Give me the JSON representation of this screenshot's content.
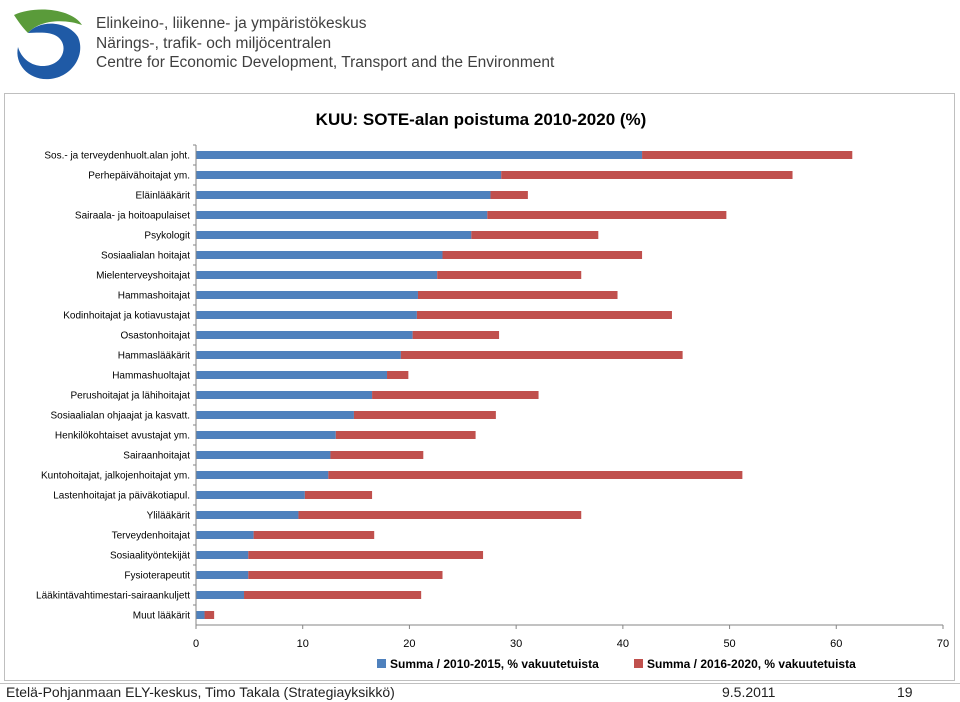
{
  "header": {
    "org_fi": "Elinkeino-, liikenne- ja ympäristökeskus",
    "org_sv": "Närings-, trafik- och miljöcentralen",
    "org_en": "Centre for Economic Development, Transport and the Environment",
    "logo_colors": {
      "green": "#5a9b3a",
      "blue": "#1f5aa6"
    }
  },
  "chart_data": {
    "type": "bar",
    "orientation": "horizontal",
    "stacked": true,
    "title": "KUU: SOTE-alan poistuma 2010-2020 (%)",
    "xlabel": "",
    "ylabel": "",
    "xlim": [
      0,
      70
    ],
    "xticks": [
      0,
      10,
      20,
      30,
      40,
      50,
      60,
      70
    ],
    "grid": false,
    "legend_position": "bottom",
    "categories": [
      "Sos.- ja terveydenhuolt.alan joht.",
      "Perhepäivähoitajat ym.",
      "Eläinlääkärit",
      "Sairaala- ja hoitoapulaiset",
      "Psykologit",
      "Sosiaalialan hoitajat",
      "Mielenterveyshoitajat",
      "Hammashoitajat",
      "Kodinhoitajat ja kotiavustajat",
      "Osastonhoitajat",
      "Hammaslääkärit",
      "Hammashuoltajat",
      "Perushoitajat ja lähihoitajat",
      "Sosiaalialan ohjaajat ja kasvatt.",
      "Henkilökohtaiset avustajat ym.",
      "Sairaanhoitajat",
      "Kuntohoitajat, jalkojenhoitajat ym.",
      "Lastenhoitajat ja päiväkotiapul.",
      "Ylilääkärit",
      "Terveydenhoitajat",
      "Sosiaalityöntekijät",
      "Fysioterapeutit",
      "Lääkintävahtimestari-sairaankuljett",
      "Muut lääkärit"
    ],
    "series": [
      {
        "name": "Summa / 2010-2015, % vakuutetuista",
        "color": "#4f81bd",
        "values": [
          41.8,
          28.6,
          27.6,
          27.3,
          25.8,
          23.1,
          22.6,
          20.8,
          20.7,
          20.3,
          19.2,
          17.9,
          16.5,
          14.8,
          13.1,
          12.6,
          12.4,
          10.2,
          9.6,
          5.4,
          4.9,
          4.9,
          4.5,
          0.8
        ]
      },
      {
        "name": "Summa / 2016-2020, % vakuutetuista",
        "color": "#c0504d",
        "values": [
          19.7,
          27.3,
          3.5,
          22.4,
          11.9,
          18.7,
          13.5,
          18.7,
          23.9,
          8.1,
          26.4,
          2.0,
          15.6,
          13.3,
          13.1,
          8.7,
          38.8,
          6.3,
          26.5,
          11.3,
          22.0,
          18.2,
          16.6,
          0.9
        ]
      }
    ]
  },
  "footer": {
    "source": "Etelä-Pohjanmaan ELY-keskus, Timo Takala (Strategiayksikkö)",
    "date": "9.5.2011",
    "page": "19"
  }
}
